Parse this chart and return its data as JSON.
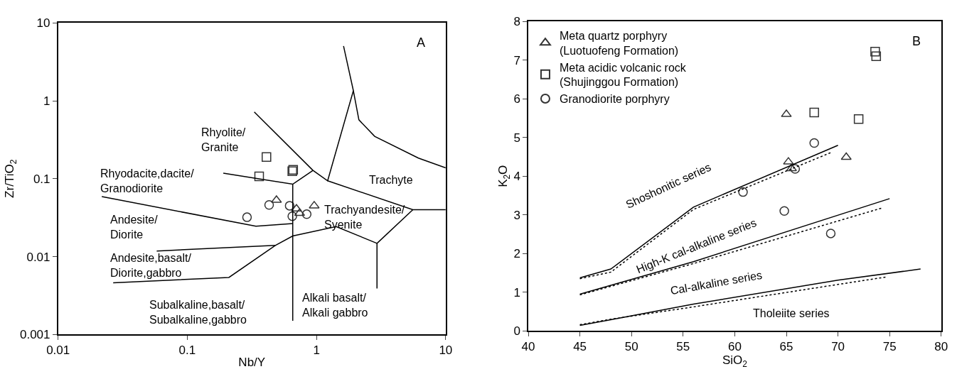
{
  "chart_data": [
    {
      "type": "scatter",
      "xlabel": "Nb/Y",
      "ylabel": "Zr/TiO$_{2}$",
      "log": "xy",
      "xlim": [
        0.01,
        10
      ],
      "ylim": [
        0.001,
        10
      ],
      "xticks": [
        0.01,
        0.1,
        1,
        10
      ],
      "yticks": [
        0.001,
        0.01,
        0.1,
        1,
        10
      ],
      "legend": false,
      "annotations": [
        "A",
        "Rhyolite/\nGranite",
        "Rhyodacite,dacite/\nGranodiorite",
        "Andesite/\nDiorite",
        "Andesite,basalt/\nDiorite,gabbro",
        "Subalkaline,basalt/\nSubalkaline,gabbro",
        "Alkali basalt/\nAlkali gabbro",
        "Trachyandesite/\nSyenite",
        "Trachyte"
      ],
      "series": [
        {
          "type": "scatter",
          "marker": "triangle",
          "color": "#333333",
          "x": [
            0.49,
            0.7,
            0.74,
            0.96
          ],
          "values": [
            0.053,
            0.041,
            0.036,
            0.045
          ]
        },
        {
          "type": "scatter",
          "marker": "square",
          "color": "#333333",
          "x": [
            0.41,
            0.36,
            0.65,
            0.66
          ],
          "values": [
            0.19,
            0.107,
            0.125,
            0.13
          ]
        },
        {
          "type": "scatter",
          "marker": "circle",
          "color": "#333333",
          "x": [
            0.29,
            0.43,
            0.62,
            0.65,
            0.84
          ],
          "values": [
            0.032,
            0.046,
            0.045,
            0.033,
            0.035
          ]
        },
        {
          "type": "line",
          "color": "#000000",
          "line_style": "solid",
          "x": [
            0.33,
            0.94,
            1.22,
            1.93,
            1.62
          ],
          "values": [
            0.72,
            0.128,
            0.094,
            1.35,
            5.06
          ]
        },
        {
          "type": "line",
          "color": "#000000",
          "line_style": "solid",
          "x": [
            1.93,
            2.13,
            2.82,
            6.15,
            10
          ],
          "values": [
            1.35,
            0.57,
            0.35,
            0.184,
            0.138
          ]
        },
        {
          "type": "line",
          "color": "#000000",
          "line_style": "solid",
          "x": [
            0.19,
            0.655,
            0.94
          ],
          "values": [
            0.118,
            0.085,
            0.128
          ]
        },
        {
          "type": "line",
          "color": "#000000",
          "line_style": "solid",
          "x": [
            0.655,
            0.655
          ],
          "values": [
            0.085,
            0.0015
          ]
        },
        {
          "type": "line",
          "color": "#000000",
          "line_style": "solid",
          "x": [
            1.22,
            5.57,
            10
          ],
          "values": [
            0.094,
            0.04,
            0.04
          ]
        },
        {
          "type": "line",
          "color": "#000000",
          "line_style": "solid",
          "x": [
            5.57,
            2.94,
            2.94
          ],
          "values": [
            0.04,
            0.0148,
            0.0039
          ]
        },
        {
          "type": "line",
          "color": "#000000",
          "line_style": "solid",
          "x": [
            2.94,
            1.42,
            0.655,
            0.48,
            0.21,
            0.0267
          ],
          "values": [
            0.0148,
            0.0243,
            0.0184,
            0.0139,
            0.0054,
            0.0046
          ]
        },
        {
          "type": "line",
          "color": "#000000",
          "line_style": "solid",
          "x": [
            0.058,
            0.48
          ],
          "values": [
            0.0118,
            0.0139
          ]
        },
        {
          "type": "line",
          "color": "#000000",
          "line_style": "solid",
          "x": [
            0.0218,
            0.34,
            0.655
          ],
          "values": [
            0.059,
            0.0245,
            0.0265
          ]
        }
      ]
    },
    {
      "type": "scatter",
      "xlabel": "SiO$_{2}$",
      "ylabel": "K$_{2}$O",
      "xlim": [
        40,
        80
      ],
      "ylim": [
        0,
        8
      ],
      "xticks": [
        40,
        45,
        50,
        55,
        60,
        65,
        70,
        75,
        80
      ],
      "yticks": [
        0,
        1,
        2,
        3,
        4,
        5,
        6,
        7,
        8
      ],
      "legend": "top left",
      "annotations": [
        "B",
        "Shoshonitic series",
        "High-K cal-alkaline series",
        "Cal-alkaline series",
        "Tholeiite series"
      ],
      "series": [
        {
          "type": "scatter",
          "name": "Meta quartz porphyry\n(Luotuofeng Formation)",
          "marker": "triangle",
          "color": "#333333",
          "x": [
            65.0,
            65.2,
            65.5,
            70.8
          ],
          "values": [
            5.6,
            4.37,
            4.2,
            4.49
          ]
        },
        {
          "type": "scatter",
          "name": "Meta acidic volcanic rock\n(Shujinggou Formation)",
          "marker": "square",
          "color": "#333333",
          "x": [
            73.6,
            73.7,
            67.7,
            72.0
          ],
          "values": [
            7.22,
            7.1,
            5.65,
            5.48
          ]
        },
        {
          "type": "scatter",
          "name": "Granodiorite porphyry",
          "marker": "circle",
          "color": "#333333",
          "x": [
            67.7,
            65.85,
            60.8,
            64.8,
            69.3
          ],
          "values": [
            4.86,
            4.19,
            3.59,
            3.1,
            2.52
          ]
        },
        {
          "type": "line",
          "color": "#000000",
          "line_style": "solid",
          "x": [
            45,
            48,
            56,
            70
          ],
          "values": [
            1.37,
            1.6,
            3.2,
            4.8
          ]
        },
        {
          "type": "line",
          "color": "#000000",
          "line_style": "dashed",
          "x": [
            45,
            48,
            56,
            69.3
          ],
          "values": [
            1.35,
            1.52,
            3.14,
            4.61
          ]
        },
        {
          "type": "line",
          "color": "#000000",
          "line_style": "solid",
          "x": [
            45,
            56,
            75
          ],
          "values": [
            0.95,
            1.79,
            3.42
          ]
        },
        {
          "type": "line",
          "color": "#000000",
          "line_style": "dashed",
          "x": [
            45,
            56,
            74.3
          ],
          "values": [
            0.93,
            1.74,
            3.18
          ]
        },
        {
          "type": "line",
          "color": "#000000",
          "line_style": "solid",
          "x": [
            45,
            48,
            56,
            70,
            78
          ],
          "values": [
            0.14,
            0.29,
            0.69,
            1.31,
            1.6
          ]
        },
        {
          "type": "line",
          "color": "#000000",
          "line_style": "dashed",
          "x": [
            45,
            48,
            56,
            70,
            74.6
          ],
          "values": [
            0.16,
            0.3,
            0.62,
            1.2,
            1.39
          ]
        }
      ]
    }
  ]
}
